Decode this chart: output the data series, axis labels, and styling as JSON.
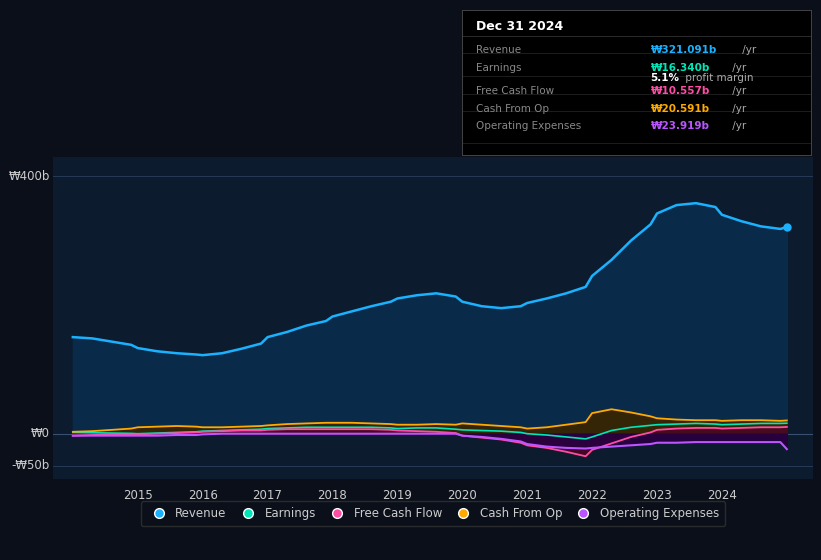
{
  "bg_color": "#0a0f1a",
  "plot_bg_color": "#0d1b2e",
  "ylabel_400": "₩400b",
  "ylabel_0": "₩0",
  "ylabel_neg50": "-₩50b",
  "x_years": [
    2014.0,
    2014.3,
    2014.6,
    2014.9,
    2015.0,
    2015.3,
    2015.6,
    2015.9,
    2016.0,
    2016.3,
    2016.6,
    2016.9,
    2017.0,
    2017.3,
    2017.6,
    2017.9,
    2018.0,
    2018.3,
    2018.6,
    2018.9,
    2019.0,
    2019.3,
    2019.6,
    2019.9,
    2020.0,
    2020.3,
    2020.6,
    2020.9,
    2021.0,
    2021.3,
    2021.6,
    2021.9,
    2022.0,
    2022.3,
    2022.6,
    2022.9,
    2023.0,
    2023.3,
    2023.6,
    2023.9,
    2024.0,
    2024.3,
    2024.6,
    2024.9,
    2025.0
  ],
  "revenue": [
    150,
    148,
    143,
    138,
    133,
    128,
    125,
    123,
    122,
    125,
    132,
    140,
    150,
    158,
    168,
    175,
    182,
    190,
    198,
    205,
    210,
    215,
    218,
    213,
    205,
    198,
    195,
    198,
    203,
    210,
    218,
    228,
    245,
    270,
    300,
    325,
    342,
    355,
    358,
    352,
    340,
    330,
    322,
    318,
    321
  ],
  "earnings": [
    2,
    1.5,
    1,
    0.5,
    0,
    1,
    2,
    3,
    4,
    5,
    6,
    7,
    8,
    9,
    10,
    10,
    10,
    10,
    10,
    9,
    8,
    9,
    9,
    7,
    6,
    5,
    4,
    2,
    0,
    -2,
    -5,
    -8,
    -5,
    5,
    10,
    13,
    14,
    15,
    16,
    15,
    14,
    15,
    16,
    16,
    16.34
  ],
  "free_cash_flow": [
    -3,
    -2,
    -1,
    -1,
    -1,
    0,
    1,
    2,
    3,
    4,
    5,
    5,
    6,
    7,
    7,
    7,
    7,
    7,
    7,
    6,
    5,
    4,
    3,
    1,
    -3,
    -6,
    -9,
    -14,
    -18,
    -22,
    -28,
    -35,
    -25,
    -15,
    -5,
    2,
    6,
    8,
    9,
    9,
    8,
    9,
    10,
    10,
    10.557
  ],
  "cash_from_op": [
    3,
    4,
    6,
    8,
    10,
    11,
    12,
    11,
    10,
    10,
    11,
    12,
    13,
    15,
    16,
    17,
    17,
    17,
    16,
    15,
    14,
    14,
    15,
    14,
    16,
    14,
    12,
    10,
    8,
    10,
    14,
    18,
    32,
    38,
    33,
    27,
    24,
    22,
    21,
    21,
    20,
    21,
    21,
    20,
    20.591
  ],
  "operating_expenses": [
    -3,
    -3,
    -3,
    -3,
    -3,
    -3,
    -2,
    -2,
    -1,
    0,
    0,
    0,
    0,
    0,
    0,
    0,
    0,
    0,
    0,
    0,
    0,
    0,
    0,
    0,
    -3,
    -5,
    -8,
    -12,
    -16,
    -20,
    -22,
    -23,
    -22,
    -20,
    -18,
    -16,
    -14,
    -14,
    -13,
    -13,
    -13,
    -13,
    -13,
    -13,
    -23.919
  ],
  "revenue_color": "#1ab2ff",
  "earnings_color": "#00e6b8",
  "free_cash_flow_color": "#ff4da6",
  "cash_from_op_color": "#ffaa00",
  "operating_expenses_color": "#bb55ff",
  "revenue_fill": "#0a2a4a",
  "earnings_fill": "#003326",
  "free_cash_flow_fill": "#4a0822",
  "cash_from_op_fill": "#3a2500",
  "operating_expenses_fill": "#280040",
  "legend_labels": [
    "Revenue",
    "Earnings",
    "Free Cash Flow",
    "Cash From Op",
    "Operating Expenses"
  ],
  "legend_colors": [
    "#1ab2ff",
    "#00e6b8",
    "#ff4da6",
    "#ffaa00",
    "#bb55ff"
  ],
  "ylim_min": -70,
  "ylim_max": 430,
  "xlim_min": 2013.7,
  "xlim_max": 2025.4,
  "info_title": "Dec 31 2024",
  "info_rows": [
    {
      "label": "Revenue",
      "value": "₩321.091b",
      "color": "#1ab2ff",
      "suffix": " /yr",
      "extra": null
    },
    {
      "label": "Earnings",
      "value": "₩16.340b",
      "color": "#00e6b8",
      "suffix": " /yr",
      "extra": "5.1% profit margin"
    },
    {
      "label": "Free Cash Flow",
      "value": "₩10.557b",
      "color": "#ff4da6",
      "suffix": " /yr",
      "extra": null
    },
    {
      "label": "Cash From Op",
      "value": "₩20.591b",
      "color": "#ffaa00",
      "suffix": " /yr",
      "extra": null
    },
    {
      "label": "Operating Expenses",
      "value": "₩23.919b",
      "color": "#bb55ff",
      "suffix": " /yr",
      "extra": null
    }
  ]
}
